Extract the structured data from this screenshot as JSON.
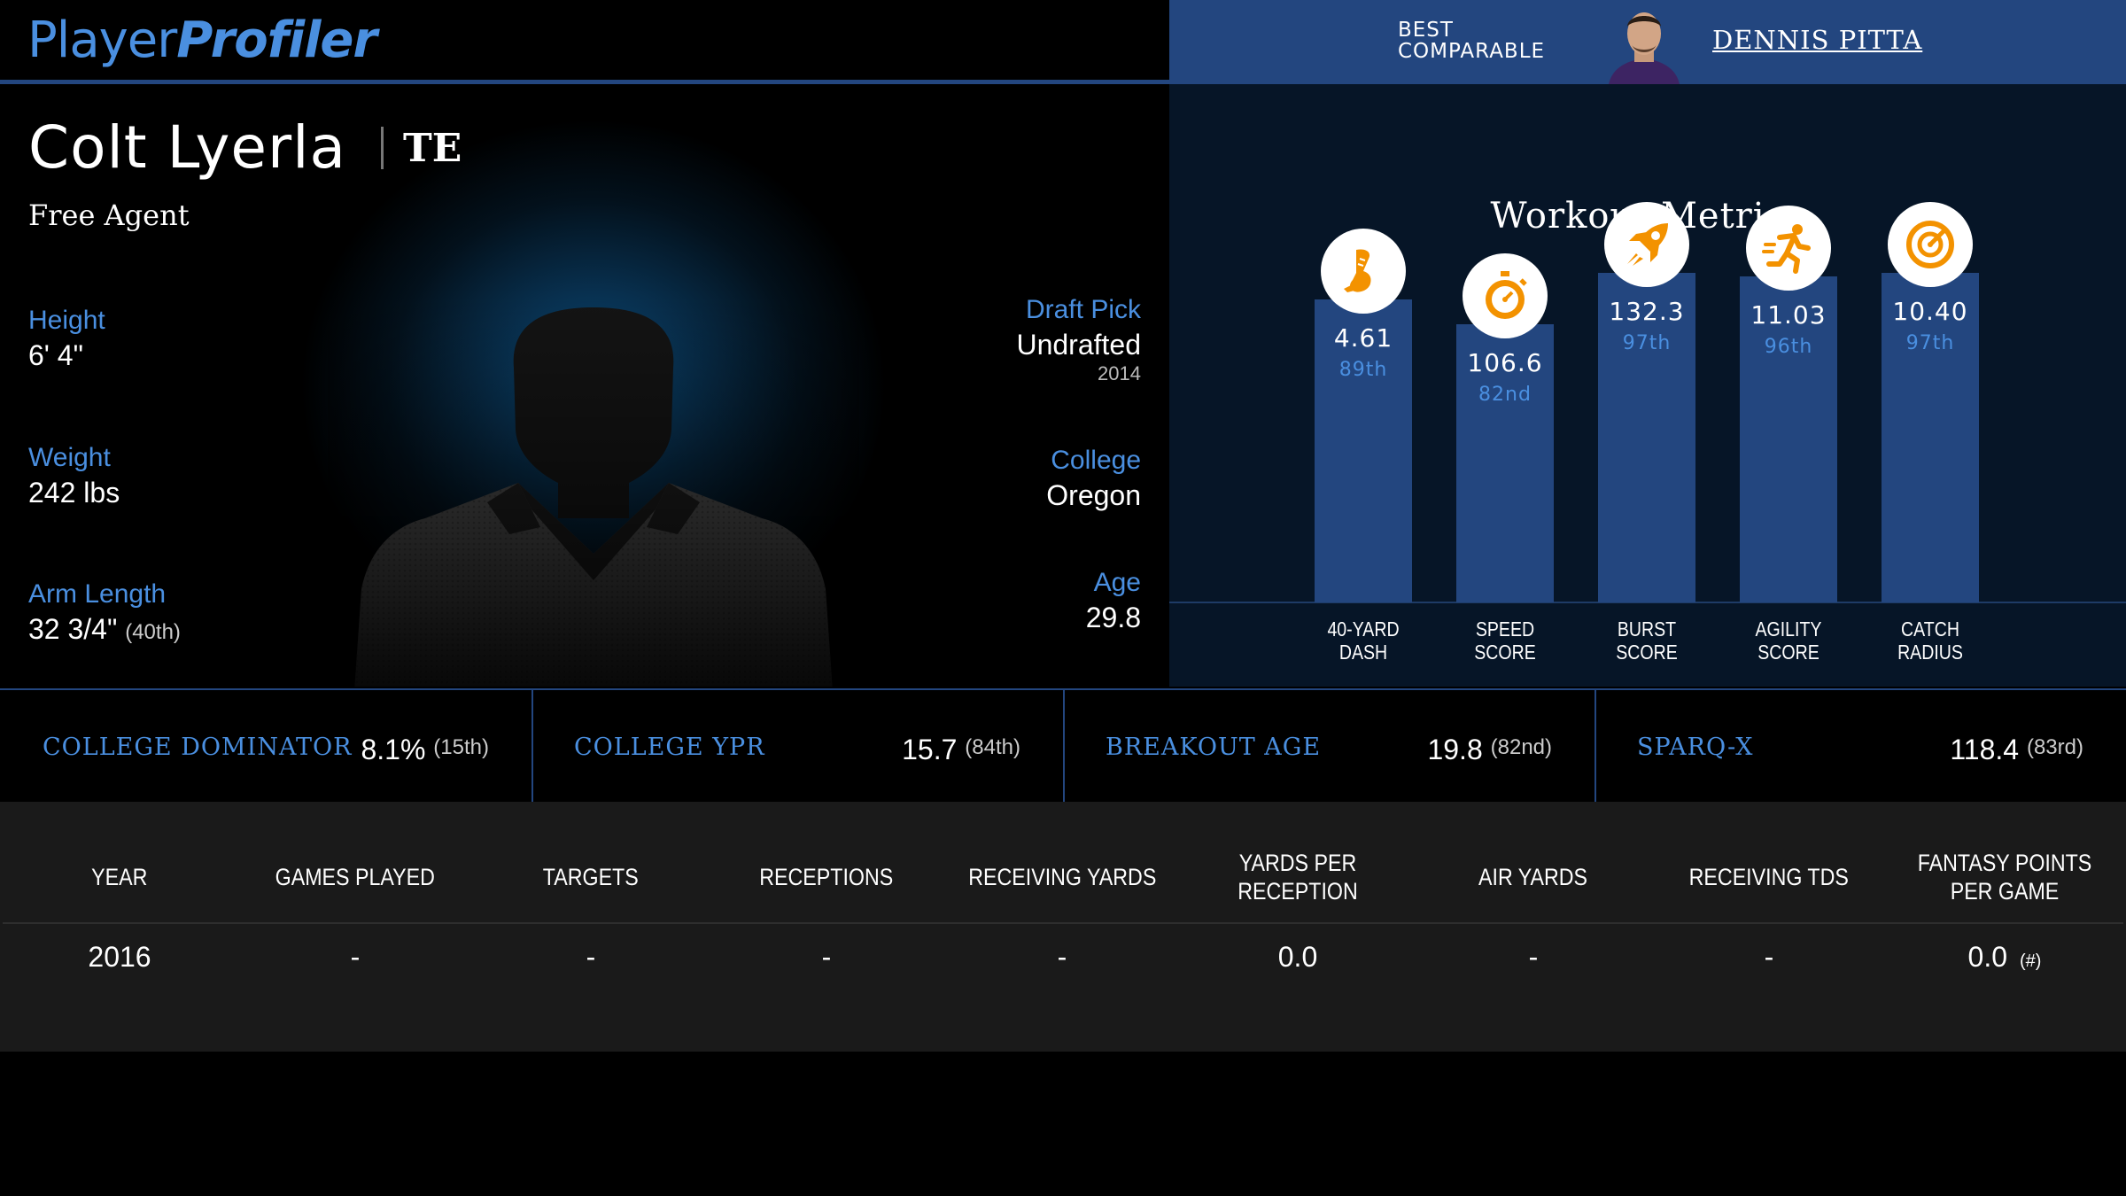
{
  "brand": {
    "part1": "Player",
    "part2": "Profiler"
  },
  "comparable": {
    "label": "BEST COMPARABLE",
    "name": "DENNIS PITTA"
  },
  "player": {
    "name": "Colt Lyerla",
    "position": "TE",
    "team": "Free Agent",
    "height": {
      "label": "Height",
      "value": "6' 4\""
    },
    "weight": {
      "label": "Weight",
      "value": "242 lbs"
    },
    "arm_length": {
      "label": "Arm Length",
      "value": "32 3/4\"",
      "rank": "(40th)"
    },
    "draft_pick": {
      "label": "Draft Pick",
      "value": "Undrafted",
      "year": "2014"
    },
    "college": {
      "label": "College",
      "value": "Oregon"
    },
    "age": {
      "label": "Age",
      "value": "29.8"
    }
  },
  "workout": {
    "title": "Workout Metrics",
    "metrics": [
      {
        "icon": "shoe-icon",
        "value": "4.61",
        "percentile": "89th",
        "label_line1": "40-YARD",
        "label_line2": "DASH",
        "pct_value": 89
      },
      {
        "icon": "stopwatch-icon",
        "value": "106.6",
        "percentile": "82nd",
        "label_line1": "SPEED",
        "label_line2": "SCORE",
        "pct_value": 82
      },
      {
        "icon": "rocket-icon",
        "value": "132.3",
        "percentile": "97th",
        "label_line1": "BURST",
        "label_line2": "SCORE",
        "pct_value": 97
      },
      {
        "icon": "runner-icon",
        "value": "11.03",
        "percentile": "96th",
        "label_line1": "AGILITY",
        "label_line2": "SCORE",
        "pct_value": 96
      },
      {
        "icon": "target-icon",
        "value": "10.40",
        "percentile": "97th",
        "label_line1": "CATCH",
        "label_line2": "RADIUS",
        "pct_value": 97
      }
    ]
  },
  "stats_strip": [
    {
      "label": "COLLEGE DOMINATOR",
      "value": "8.1%",
      "rank": "(15th)"
    },
    {
      "label": "COLLEGE YPR",
      "value": "15.7",
      "rank": "(84th)"
    },
    {
      "label": "BREAKOUT AGE",
      "value": "19.8",
      "rank": "(82nd)"
    },
    {
      "label": "SPARQ-X",
      "value": "118.4",
      "rank": "(83rd)"
    }
  ],
  "game_log": {
    "columns": [
      "YEAR",
      "GAMES PLAYED",
      "TARGETS",
      "RECEPTIONS",
      "RECEIVING YARDS",
      "YARDS PER RECEPTION",
      "AIR YARDS",
      "RECEIVING TDS",
      "FANTASY POINTS PER GAME"
    ],
    "rows": [
      {
        "cells": [
          "2016",
          "-",
          "-",
          "-",
          "-",
          "0.0",
          "-",
          "-",
          "0.0"
        ],
        "rank_note": "(#)"
      }
    ]
  },
  "colors": {
    "accent_blue": "#4a8fe0",
    "bar_blue": "#23467f",
    "icon_orange": "#f39200",
    "panel_dark": "#061527",
    "table_bg": "#1a1a1a"
  }
}
